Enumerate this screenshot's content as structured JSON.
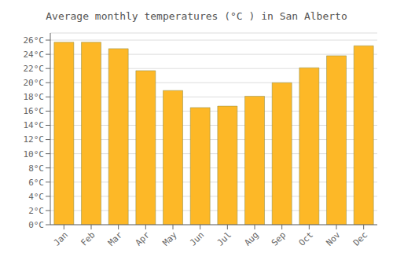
{
  "chart_data": {
    "type": "bar",
    "title": "Average monthly temperatures (°C ) in San Alberto",
    "categories": [
      "Jan",
      "Feb",
      "Mar",
      "Apr",
      "May",
      "Jun",
      "Jul",
      "Aug",
      "Sep",
      "Oct",
      "Nov",
      "Dec"
    ],
    "values": [
      25.7,
      25.7,
      24.8,
      21.7,
      18.9,
      16.5,
      16.7,
      18.1,
      20.0,
      22.1,
      23.8,
      25.2
    ],
    "color": "#FDB827",
    "ylim": [
      0,
      27
    ],
    "yticks": [
      {
        "value": 0,
        "label": "0°C"
      },
      {
        "value": 2,
        "label": "2°C"
      },
      {
        "value": 4,
        "label": "4°C"
      },
      {
        "value": 6,
        "label": "6°C"
      },
      {
        "value": 8,
        "label": "8°C"
      },
      {
        "value": 10,
        "label": "10°C"
      },
      {
        "value": 12,
        "label": "12°C"
      },
      {
        "value": 14,
        "label": "14°C"
      },
      {
        "value": 16,
        "label": "16°C"
      },
      {
        "value": 18,
        "label": "18°C"
      },
      {
        "value": 20,
        "label": "20°C"
      },
      {
        "value": 22,
        "label": "22°C"
      },
      {
        "value": 24,
        "label": "24°C"
      },
      {
        "value": 26,
        "label": "26°C"
      }
    ],
    "grid": true
  }
}
